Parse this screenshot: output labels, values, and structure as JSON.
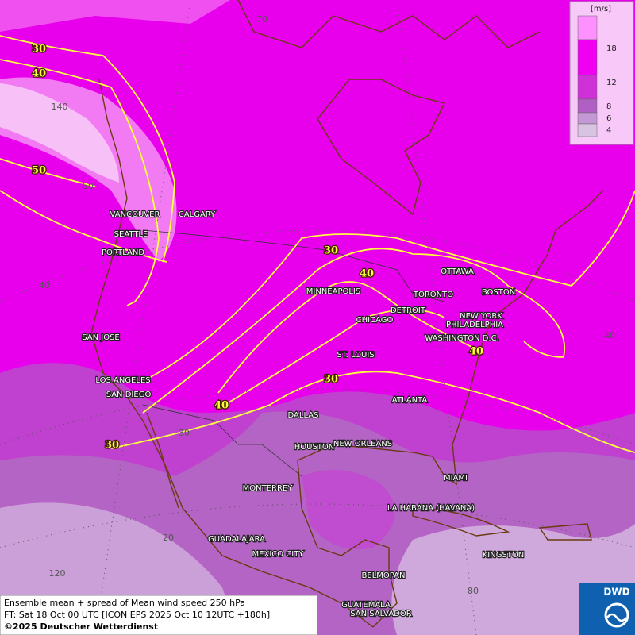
{
  "legend": {
    "unit": "[m/s]",
    "labels": [
      "18",
      "12",
      "8",
      "6",
      "4"
    ]
  },
  "cities": [
    "VANCOUVER",
    "CALGARY",
    "SEATTLE",
    "PORTLAND",
    "SAN JOSE",
    "LOS ANGELES",
    "SAN DIEGO",
    "MINNEAPOLIS",
    "TORONTO",
    "OTTAWA",
    "BOSTON",
    "DETROIT",
    "NEW YORK",
    "PHILADELPHIA",
    "CHICAGO",
    "WASHINGTON D.C.",
    "ST. LOUIS",
    "ATLANTA",
    "DALLAS",
    "HOUSTON",
    "NEW ORLEANS",
    "MIAMI",
    "MONTERREY",
    "LA HABANA (HAVANA)",
    "GUADALAJARA",
    "MEXICO CITY",
    "KINGSTON",
    "BELMOPAN",
    "GUATEMALA",
    "SAN SALVADOR"
  ],
  "contour_labels": [
    "30",
    "40",
    "50",
    "30",
    "40",
    "40",
    "30",
    "40",
    "30"
  ],
  "grid_labels": [
    "70",
    "140",
    "50",
    "40",
    "30",
    "20",
    "120",
    "80",
    "40"
  ],
  "footer": {
    "line1": "Ensemble mean + spread of Mean wind speed 250 hPa",
    "line2": "FT: Sat 18 Oct 00 UTC [ICON EPS 2025 Oct 10 12UTC +180h]",
    "line3": "©2025 Deutscher Wetterdienst"
  },
  "logo": "DWD"
}
